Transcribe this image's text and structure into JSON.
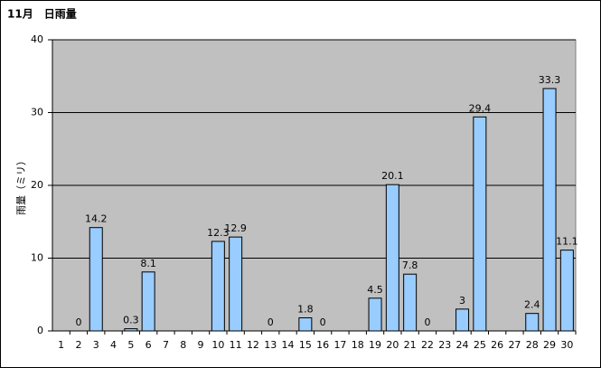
{
  "chart_data": {
    "type": "bar",
    "title": "11月　日雨量",
    "y_label": "雨量（ミリ）",
    "categories": [
      "1",
      "2",
      "3",
      "4",
      "5",
      "6",
      "7",
      "8",
      "9",
      "10",
      "11",
      "12",
      "13",
      "14",
      "15",
      "16",
      "17",
      "18",
      "19",
      "20",
      "21",
      "22",
      "23",
      "24",
      "25",
      "26",
      "27",
      "28",
      "29",
      "30"
    ],
    "values": [
      null,
      0,
      14.2,
      null,
      0.3,
      8.1,
      null,
      null,
      null,
      12.3,
      12.9,
      null,
      0,
      null,
      1.8,
      0,
      null,
      null,
      4.5,
      20.1,
      7.8,
      0,
      null,
      3,
      29.4,
      null,
      null,
      2.4,
      33.3,
      11.1
    ],
    "color": "#99ccff",
    "ylim": [
      0,
      40
    ],
    "yticks": [
      0,
      10,
      20,
      30,
      40
    ],
    "grid": true
  }
}
